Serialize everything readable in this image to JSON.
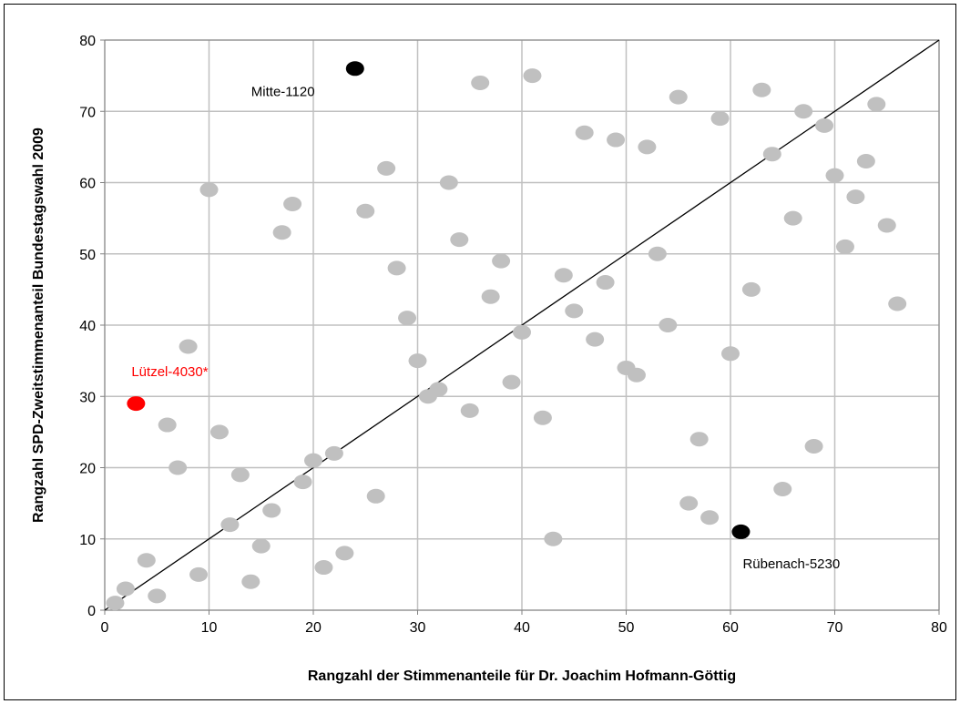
{
  "chart_data": {
    "type": "scatter",
    "title": "",
    "xlabel": "Rangzahl der Stimmenanteile für Dr. Joachim Hofmann-Göttig",
    "ylabel": "Rangzahl SPD-Zweitstimmenanteil Bundestagswahl 2009",
    "xlim": [
      0,
      80
    ],
    "ylim": [
      0,
      80
    ],
    "xticks": [
      "0",
      "10",
      "20",
      "30",
      "40",
      "50",
      "60",
      "70",
      "80"
    ],
    "yticks": [
      "0",
      "10",
      "20",
      "30",
      "40",
      "50",
      "60",
      "70",
      "80"
    ],
    "grid": true,
    "reference_line": {
      "from": [
        0,
        0
      ],
      "to": [
        80,
        80
      ],
      "color": "#000000"
    },
    "colors": {
      "default": "#c0c0c0",
      "highlight_black": "#000000",
      "highlight_red": "#ff0000"
    },
    "points": [
      [
        1,
        1
      ],
      [
        2,
        3
      ],
      [
        4,
        7
      ],
      [
        5,
        2
      ],
      [
        6,
        26
      ],
      [
        7,
        20
      ],
      [
        8,
        37
      ],
      [
        9,
        5
      ],
      [
        10,
        59
      ],
      [
        11,
        25
      ],
      [
        12,
        12
      ],
      [
        13,
        19
      ],
      [
        14,
        4
      ],
      [
        15,
        9
      ],
      [
        16,
        14
      ],
      [
        17,
        53
      ],
      [
        18,
        57
      ],
      [
        19,
        18
      ],
      [
        20,
        21
      ],
      [
        21,
        6
      ],
      [
        22,
        22
      ],
      [
        23,
        8
      ],
      [
        25,
        56
      ],
      [
        26,
        16
      ],
      [
        27,
        62
      ],
      [
        28,
        48
      ],
      [
        29,
        41
      ],
      [
        30,
        35
      ],
      [
        31,
        30
      ],
      [
        32,
        31
      ],
      [
        33,
        60
      ],
      [
        34,
        52
      ],
      [
        35,
        28
      ],
      [
        36,
        74
      ],
      [
        37,
        44
      ],
      [
        38,
        49
      ],
      [
        39,
        32
      ],
      [
        40,
        39
      ],
      [
        41,
        75
      ],
      [
        42,
        27
      ],
      [
        43,
        10
      ],
      [
        44,
        47
      ],
      [
        45,
        42
      ],
      [
        46,
        67
      ],
      [
        47,
        38
      ],
      [
        48,
        46
      ],
      [
        49,
        66
      ],
      [
        50,
        34
      ],
      [
        51,
        33
      ],
      [
        52,
        65
      ],
      [
        53,
        50
      ],
      [
        54,
        40
      ],
      [
        55,
        72
      ],
      [
        56,
        15
      ],
      [
        57,
        24
      ],
      [
        58,
        13
      ],
      [
        59,
        69
      ],
      [
        60,
        36
      ],
      [
        62,
        45
      ],
      [
        63,
        73
      ],
      [
        64,
        64
      ],
      [
        65,
        17
      ],
      [
        66,
        55
      ],
      [
        67,
        70
      ],
      [
        68,
        23
      ],
      [
        69,
        68
      ],
      [
        70,
        61
      ],
      [
        71,
        51
      ],
      [
        72,
        58
      ],
      [
        73,
        63
      ],
      [
        74,
        71
      ],
      [
        75,
        54
      ],
      [
        76,
        43
      ]
    ],
    "highlighted": [
      {
        "label": "Mitte-1120",
        "x": 24,
        "y": 76,
        "color": "#000000"
      },
      {
        "label": "Rübenach-5230",
        "x": 61,
        "y": 11,
        "color": "#000000"
      },
      {
        "label": "Lützel-4030*",
        "x": 3,
        "y": 29,
        "color": "#ff0000"
      }
    ]
  }
}
